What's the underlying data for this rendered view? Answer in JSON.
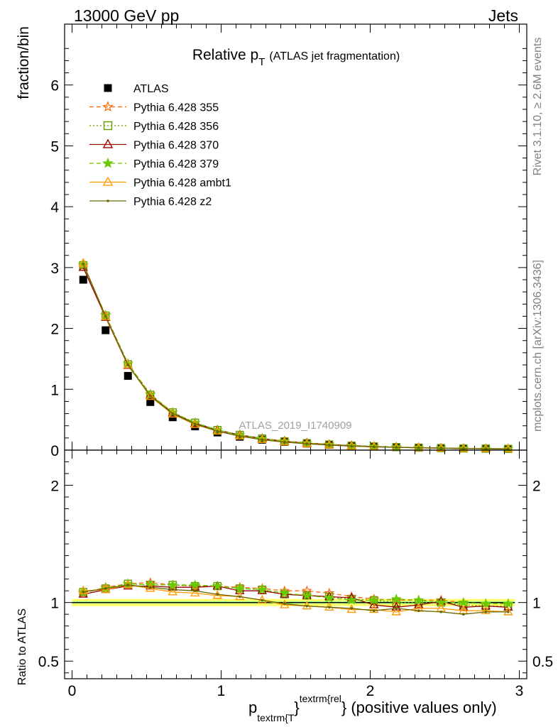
{
  "header": {
    "left": "13000 GeV pp",
    "right": "Jets"
  },
  "side_labels": {
    "rivet": "Rivet 3.1.10, ≥ 2.6M events",
    "mcplots": "mcplots.cern.ch [arXiv:1306.3436]"
  },
  "watermark": "ATLAS_2019_I1740909",
  "colors": {
    "ATLAS": "#000000",
    "355": "#ff6600",
    "356": "#669900",
    "370": "#990000",
    "379": "#66cc00",
    "ambt1": "#ff9900",
    "z2": "#666600",
    "band_inner": "#99ff99",
    "band_outer": "#ffff66"
  },
  "chart_data": [
    {
      "type": "scatter",
      "title_main": "Relative p",
      "title_sub": "T",
      "title_rest": "(ATLAS jet fragmentation)",
      "ylabel": "fraction/bin",
      "xlim": [
        -0.05,
        3.05
      ],
      "ylim": [
        0,
        7.0
      ],
      "yticks": [
        0,
        1,
        2,
        3,
        4,
        5,
        6
      ],
      "ytick_labels": [
        "0",
        "1",
        "2",
        "3",
        "4",
        "5",
        "6"
      ],
      "legend_position": "top-left",
      "x": [
        0.075,
        0.225,
        0.375,
        0.525,
        0.675,
        0.825,
        0.975,
        1.125,
        1.275,
        1.425,
        1.575,
        1.725,
        1.875,
        2.025,
        2.175,
        2.325,
        2.475,
        2.625,
        2.775,
        2.925
      ],
      "series": [
        {
          "name": "ATLAS",
          "marker": "filled-square",
          "line": "none",
          "values": [
            2.8,
            1.97,
            1.22,
            0.79,
            0.54,
            0.39,
            0.29,
            0.22,
            0.17,
            0.135,
            0.108,
            0.087,
            0.071,
            0.059,
            0.049,
            0.041,
            0.034,
            0.029,
            0.025,
            0.022
          ]
        },
        {
          "name": "Pythia 6.428 355",
          "marker": "open-star",
          "line": "dashed",
          "values": [
            3.03,
            2.22,
            1.42,
            0.92,
            0.62,
            0.45,
            0.33,
            0.25,
            0.19,
            0.15,
            0.12,
            0.095,
            0.075,
            0.061,
            0.05,
            0.042,
            0.035,
            0.029,
            0.025,
            0.022
          ]
        },
        {
          "name": "Pythia 6.428 356",
          "marker": "open-square",
          "line": "dotted",
          "values": [
            3.04,
            2.21,
            1.41,
            0.91,
            0.62,
            0.45,
            0.33,
            0.25,
            0.19,
            0.145,
            0.115,
            0.092,
            0.073,
            0.06,
            0.049,
            0.041,
            0.034,
            0.028,
            0.024,
            0.021
          ]
        },
        {
          "name": "Pythia 6.428 370",
          "marker": "open-triangle",
          "line": "solid",
          "values": [
            3.0,
            2.18,
            1.39,
            0.9,
            0.61,
            0.44,
            0.33,
            0.25,
            0.19,
            0.145,
            0.115,
            0.091,
            0.073,
            0.058,
            0.047,
            0.04,
            0.034,
            0.028,
            0.024,
            0.021
          ]
        },
        {
          "name": "Pythia 6.428 379",
          "marker": "star",
          "line": "dashed",
          "values": [
            3.05,
            2.21,
            1.42,
            0.91,
            0.62,
            0.45,
            0.33,
            0.25,
            0.19,
            0.145,
            0.114,
            0.09,
            0.072,
            0.06,
            0.05,
            0.042,
            0.034,
            0.029,
            0.025,
            0.022
          ]
        },
        {
          "name": "Pythia 6.428 ambt1",
          "marker": "open-triangle",
          "line": "solid",
          "values": [
            3.07,
            2.19,
            1.4,
            0.88,
            0.59,
            0.42,
            0.31,
            0.23,
            0.17,
            0.133,
            0.105,
            0.083,
            0.066,
            0.055,
            0.045,
            0.039,
            0.032,
            0.027,
            0.023,
            0.02
          ]
        },
        {
          "name": "Pythia 6.428 z2",
          "marker": "dot",
          "line": "solid",
          "values": [
            3.06,
            2.2,
            1.4,
            0.89,
            0.6,
            0.43,
            0.31,
            0.23,
            0.17,
            0.132,
            0.104,
            0.082,
            0.066,
            0.055,
            0.046,
            0.039,
            0.032,
            0.026,
            0.023,
            0.02
          ]
        }
      ]
    },
    {
      "type": "line",
      "ylabel": "Ratio to ATLAS",
      "xlabel_main": "p",
      "xlabel_sub": "textrm{T",
      "xlabel_brace": "}",
      "xlabel_sup": "textrm{rel",
      "xlabel_rest": "} (positive values only)",
      "xlim": [
        -0.05,
        3.05
      ],
      "xticks": [
        0,
        1,
        2,
        3
      ],
      "xtick_labels": [
        "0",
        "1",
        "2",
        "3"
      ],
      "ylim": [
        0.35,
        2.3
      ],
      "yticks": [
        0.5,
        1,
        2
      ],
      "ytick_labels": [
        "0.5",
        "1",
        "2"
      ],
      "reference": 1.0,
      "band_inner": [
        0.99,
        1.01
      ],
      "band_outer": [
        0.97,
        1.03
      ],
      "x": [
        0.075,
        0.225,
        0.375,
        0.525,
        0.675,
        0.825,
        0.975,
        1.125,
        1.275,
        1.425,
        1.575,
        1.725,
        1.875,
        2.025,
        2.175,
        2.325,
        2.475,
        2.625,
        2.775,
        2.925
      ],
      "series": [
        {
          "name": "Pythia 6.428 355",
          "values": [
            1.08,
            1.13,
            1.16,
            1.17,
            1.15,
            1.14,
            1.14,
            1.13,
            1.12,
            1.1,
            1.1,
            1.08,
            1.05,
            1.03,
            1.02,
            1.02,
            1.02,
            1.0,
            0.99,
            0.99
          ]
        },
        {
          "name": "Pythia 6.428 356",
          "values": [
            1.09,
            1.12,
            1.16,
            1.15,
            1.15,
            1.14,
            1.14,
            1.12,
            1.11,
            1.07,
            1.06,
            1.05,
            1.03,
            1.02,
            1.0,
            1.0,
            1.0,
            0.98,
            0.97,
            0.97
          ]
        },
        {
          "name": "Pythia 6.428 370",
          "values": [
            1.07,
            1.11,
            1.14,
            1.14,
            1.13,
            1.13,
            1.14,
            1.1,
            1.1,
            1.07,
            1.06,
            1.05,
            1.04,
            0.98,
            0.96,
            0.98,
            1.01,
            0.96,
            0.97,
            0.96
          ]
        },
        {
          "name": "Pythia 6.428 379",
          "values": [
            1.09,
            1.12,
            1.16,
            1.15,
            1.15,
            1.15,
            1.14,
            1.12,
            1.11,
            1.08,
            1.06,
            1.04,
            1.02,
            1.02,
            1.03,
            1.02,
            1.0,
            1.0,
            0.99,
            0.99
          ]
        },
        {
          "name": "Pythia 6.428 ambt1",
          "values": [
            1.1,
            1.11,
            1.15,
            1.12,
            1.09,
            1.08,
            1.06,
            1.05,
            1.02,
            0.98,
            0.97,
            0.96,
            0.94,
            0.94,
            0.92,
            0.95,
            0.95,
            0.93,
            0.93,
            0.92
          ]
        },
        {
          "name": "Pythia 6.428 z2",
          "values": [
            1.09,
            1.12,
            1.15,
            1.13,
            1.11,
            1.1,
            1.07,
            1.05,
            1.02,
            0.99,
            0.97,
            0.96,
            0.95,
            0.93,
            0.95,
            0.93,
            0.92,
            0.9,
            0.92,
            0.92
          ]
        }
      ]
    }
  ]
}
